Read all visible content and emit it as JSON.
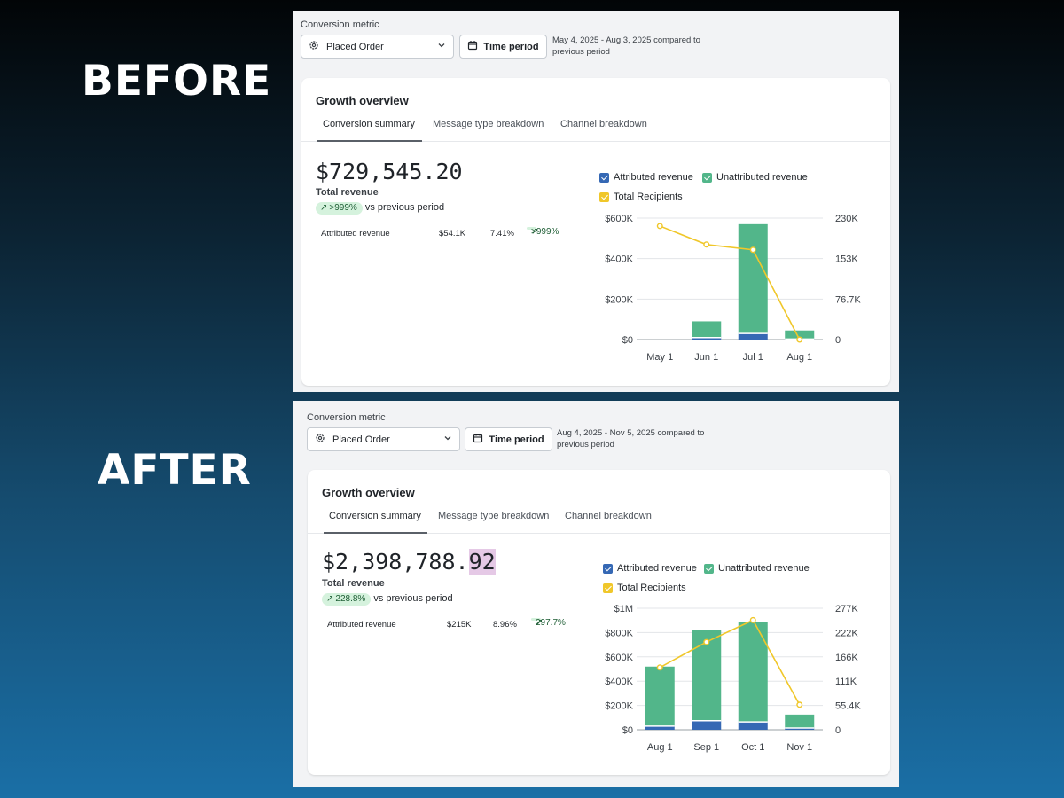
{
  "labels": {
    "before": "BEFORE",
    "after": "AFTER"
  },
  "colors": {
    "attributed": "#3568b4",
    "unattributed": "#52b68a",
    "recipients": "#f0c72a",
    "pill_bg": "#d5f2dd"
  },
  "before": {
    "conversion_metric_label": "Conversion metric",
    "metric_select": {
      "value": "Placed Order"
    },
    "time_button": "Time period",
    "date_range": "May 4, 2025 - Aug 3, 2025 compared to previous period",
    "card": {
      "title": "Growth overview",
      "tabs": [
        {
          "label": "Conversion summary",
          "selected": true
        },
        {
          "label": "Message type breakdown"
        },
        {
          "label": "Channel breakdown"
        }
      ],
      "total_revenue": {
        "main": "$729,545.20",
        "highlight": ""
      },
      "total_revenue_label": "Total revenue",
      "change_pill": ">999%",
      "vs_text": "vs previous period",
      "attributed_row": {
        "label": "Attributed revenue",
        "value": "$54.1K",
        "percent": "7.41%",
        "change": ">999%"
      },
      "legend": {
        "attributed": "Attributed revenue",
        "unattributed": "Unattributed revenue",
        "recipients": "Total Recipients"
      }
    },
    "chart_data": {
      "type": "bar",
      "stacked": true,
      "categories": [
        "May 1",
        "Jun 1",
        "Jul 1",
        "Aug 1"
      ],
      "series": [
        {
          "name": "Attributed revenue",
          "values": [
            0,
            10000,
            30000,
            3000
          ]
        },
        {
          "name": "Unattributed revenue",
          "values": [
            0,
            80000,
            540000,
            42000
          ]
        }
      ],
      "line_series": {
        "name": "Total Recipients",
        "values": [
          215000,
          180000,
          170000,
          0
        ]
      },
      "y_left": {
        "ticks": [
          "$0",
          "$200K",
          "$400K",
          "$600K"
        ],
        "max": 600000
      },
      "y_right": {
        "ticks": [
          "0",
          "76.7K",
          "153K",
          "230K"
        ],
        "max": 230000
      },
      "grid": true,
      "legend_position": "top"
    }
  },
  "after": {
    "conversion_metric_label": "Conversion metric",
    "metric_select": {
      "value": "Placed Order"
    },
    "time_button": "Time period",
    "date_range": "Aug 4, 2025 - Nov 5, 2025 compared to previous period",
    "card": {
      "title": "Growth overview",
      "tabs": [
        {
          "label": "Conversion summary",
          "selected": true
        },
        {
          "label": "Message type breakdown"
        },
        {
          "label": "Channel breakdown"
        }
      ],
      "total_revenue": {
        "main": "$2,398,788.",
        "highlight": "92"
      },
      "total_revenue_label": "Total revenue",
      "change_pill": "228.8%",
      "vs_text": "vs previous period",
      "attributed_row": {
        "label": "Attributed revenue",
        "value": "$215K",
        "percent": "8.96%",
        "change": "297.7%"
      },
      "legend": {
        "attributed": "Attributed revenue",
        "unattributed": "Unattributed revenue",
        "recipients": "Total Recipients"
      }
    },
    "chart_data": {
      "type": "bar",
      "stacked": true,
      "categories": [
        "Aug 1",
        "Sep 1",
        "Oct 1",
        "Nov 1"
      ],
      "series": [
        {
          "name": "Attributed revenue",
          "values": [
            30000,
            75000,
            65000,
            15000
          ]
        },
        {
          "name": "Unattributed revenue",
          "values": [
            490000,
            745000,
            820000,
            110000
          ]
        }
      ],
      "line_series": {
        "name": "Total Recipients",
        "values": [
          142000,
          200000,
          250000,
          57000
        ]
      },
      "y_left": {
        "ticks": [
          "$0",
          "$200K",
          "$400K",
          "$600K",
          "$800K",
          "$1M"
        ],
        "max": 1000000
      },
      "y_right": {
        "ticks": [
          "0",
          "55.4K",
          "111K",
          "166K",
          "222K",
          "277K"
        ],
        "max": 277000
      },
      "grid": true,
      "legend_position": "top"
    }
  }
}
